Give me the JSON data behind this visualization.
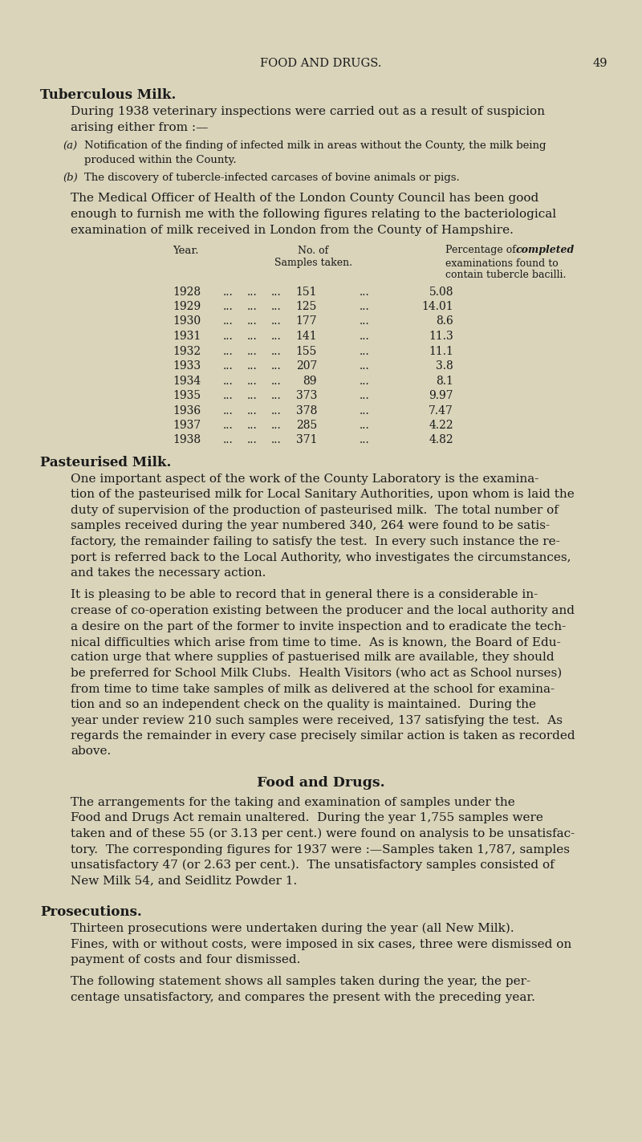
{
  "bg_color": "#d9d4ba",
  "text_color": "#1a1a1a",
  "page_header": "FOOD AND DRUGS.",
  "page_number": "49",
  "section1_title": "Tuberculous Milk.",
  "section2_title": "Pasteurised Milk.",
  "section3_title": "Food and Drugs.",
  "section4_title": "Prosecutions.",
  "table_rows": [
    [
      "1928",
      "151",
      "5.08"
    ],
    [
      "1929",
      "125",
      "14.01"
    ],
    [
      "1930",
      "177",
      "8.6"
    ],
    [
      "1931",
      "141",
      "11.3"
    ],
    [
      "1932",
      "155",
      "11.1"
    ],
    [
      "1933",
      "207",
      "3.8"
    ],
    [
      "1934",
      "89",
      "8.1"
    ],
    [
      "1935",
      "373",
      "9.97"
    ],
    [
      "1936",
      "378",
      "7.47"
    ],
    [
      "1937",
      "285",
      "4.22"
    ],
    [
      "1938",
      "371",
      "4.82"
    ]
  ],
  "s2p1_lines": [
    "One important aspect of the work of the County Laboratory is the examina-",
    "tion of the pasteurised milk for Local Sanitary Authorities, upon whom is laid the",
    "duty of supervision of the production of pasteurised milk.  The total number of",
    "samples received during the year numbered 340, 264 were found to be satis-",
    "factory, the remainder failing to satisfy the test.  In every such instance the re-",
    "port is referred back to the Local Authority, who investigates the circumstances,",
    "and takes the necessary action."
  ],
  "s2p2_lines": [
    "It is pleasing to be able to record that in general there is a considerable in-",
    "crease of co-operation existing between the producer and the local authority and",
    "a desire on the part of the former to invite inspection and to eradicate the tech-",
    "nical difficulties which arise from time to time.  As is known, the Board of Edu-",
    "cation urge that where supplies of pastuerised milk are available, they should",
    "be preferred for School Milk Clubs.  Health Visitors (who act as School nurses)",
    "from time to time take samples of milk as delivered at the school for examina-",
    "tion and so an independent check on the quality is maintained.  During the",
    "year under review 210 such samples were received, 137 satisfying the test.  As",
    "regards the remainder in every case precisely similar action is taken as recorded",
    "above."
  ],
  "s3p1_lines": [
    "The arrangements for the taking and examination of samples under the",
    "Food and Drugs Act remain unaltered.  During the year 1,755 samples were",
    "taken and of these 55 (or 3.13 per cent.) were found on analysis to be unsatisfac-",
    "tory.  The corresponding figures for 1937 were :—Samples taken 1,787, samples",
    "unsatisfactory 47 (or 2.63 per cent.).  The unsatisfactory samples consisted of",
    "New Milk 54, and Seidlitz Powder 1."
  ],
  "s4p1_lines": [
    "Thirteen prosecutions were undertaken during the year (all New Milk).",
    "Fines, with or without costs, were imposed in six cases, three were dismissed on",
    "payment of costs and four dismissed."
  ],
  "s4p2_lines": [
    "The following statement shows all samples taken during the year, the per-",
    "centage unsatisfactory, and compares the present with the preceding year."
  ]
}
